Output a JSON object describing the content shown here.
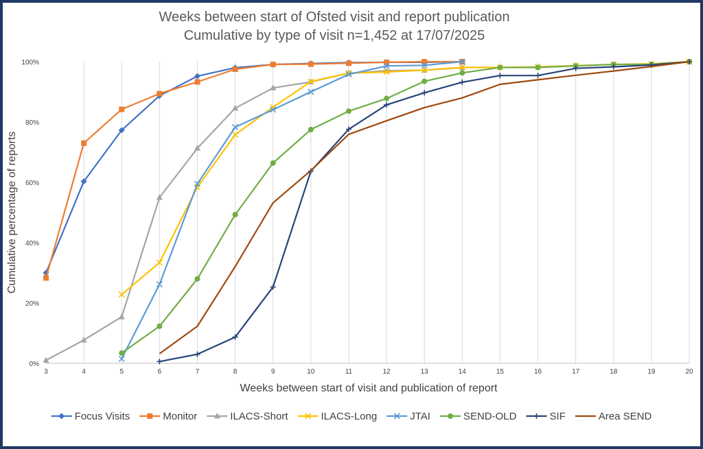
{
  "chart_data": {
    "type": "line",
    "title": "Weeks between start of Ofsted visit and report publication",
    "subtitle": "Cumulative by type of visit n=1,452 at 17/07/2025",
    "xlabel": "Weeks between start of visit and publication of report",
    "ylabel": "Cumulative percentage of reports",
    "xlim": [
      3,
      20
    ],
    "ylim": [
      0,
      100
    ],
    "x_ticks": [
      "3",
      "4",
      "5",
      "6",
      "7",
      "8",
      "9",
      "10",
      "11",
      "12",
      "13",
      "14",
      "15",
      "16",
      "17",
      "18",
      "19",
      "20"
    ],
    "y_ticks": [
      "0%",
      "20%",
      "40%",
      "60%",
      "80%",
      "100%"
    ],
    "grid": "vertical",
    "legend_position": "bottom",
    "series": [
      {
        "name": "Focus Visits",
        "color": "#4472c4",
        "marker": "diamond",
        "x": [
          3,
          4,
          5,
          6,
          7,
          8,
          9,
          10,
          11,
          12,
          13,
          14
        ],
        "y": [
          30,
          60.3,
          77.3,
          88.7,
          95.2,
          98,
          99.1,
          99.4,
          99.7,
          99.8,
          99.8,
          100
        ]
      },
      {
        "name": "Monitor",
        "color": "#ed7d31",
        "marker": "square",
        "x": [
          3,
          4,
          5,
          6,
          7,
          8,
          9,
          10,
          11,
          12,
          13,
          14
        ],
        "y": [
          28.3,
          73,
          84.2,
          89.4,
          93.3,
          97.5,
          99.1,
          99.2,
          99.5,
          99.8,
          100,
          100
        ]
      },
      {
        "name": "ILACS-Short",
        "color": "#a5a5a5",
        "marker": "triangle",
        "x": [
          3,
          4,
          5,
          6,
          7,
          8,
          9,
          10,
          11,
          12,
          13,
          14
        ],
        "y": [
          1,
          7.7,
          15.4,
          55,
          71.3,
          84.6,
          91.3,
          93.3,
          96.2,
          97,
          97.2,
          98
        ]
      },
      {
        "name": "ILACS-Long",
        "color": "#ffc000",
        "marker": "x",
        "x": [
          5,
          6,
          7,
          8,
          9,
          10,
          11,
          12,
          13,
          14,
          15,
          16,
          17,
          18,
          19,
          20
        ],
        "y": [
          22.8,
          33.4,
          58.4,
          75.8,
          84.9,
          93.4,
          96.2,
          96.6,
          97.2,
          98.1,
          98.1,
          98.3,
          98.7,
          99.1,
          99.3,
          100
        ]
      },
      {
        "name": "JTAI",
        "color": "#5b9bd5",
        "marker": "x",
        "x": [
          5,
          6,
          7,
          8,
          9,
          10,
          11,
          12,
          13,
          14
        ],
        "y": [
          1.5,
          26.2,
          59.5,
          78.3,
          84.1,
          90,
          95.8,
          98.6,
          98.8,
          100
        ]
      },
      {
        "name": "SEND-OLD",
        "color": "#70ad47",
        "marker": "circle",
        "x": [
          5,
          6,
          7,
          8,
          9,
          10,
          11,
          12,
          13,
          14,
          15,
          16,
          17,
          18,
          19,
          20
        ],
        "y": [
          3.4,
          12.3,
          28,
          49.3,
          66.4,
          77.5,
          83.6,
          87.8,
          93.5,
          96.3,
          98.1,
          98.1,
          98.6,
          99.1,
          99.1,
          100
        ]
      },
      {
        "name": "SIF",
        "color": "#264478",
        "marker": "plus",
        "x": [
          6,
          7,
          8,
          9,
          10,
          11,
          12,
          13,
          14,
          15,
          16,
          17,
          18,
          19,
          20
        ],
        "y": [
          0.6,
          3,
          8.7,
          25.3,
          63.7,
          77.6,
          85.7,
          89.7,
          93.2,
          95.4,
          95.4,
          97.8,
          98.3,
          98.9,
          100
        ]
      },
      {
        "name": "Area SEND",
        "color": "#9e480e",
        "marker": "none",
        "x": [
          6,
          7,
          8,
          9,
          10,
          11,
          12,
          13,
          14,
          15,
          16,
          17,
          18,
          19,
          20
        ],
        "y": [
          3.2,
          12.3,
          32.1,
          53.2,
          63.9,
          75.9,
          80.4,
          84.8,
          88,
          92.5,
          94,
          95.5,
          96.9,
          98.4,
          100
        ]
      }
    ]
  }
}
